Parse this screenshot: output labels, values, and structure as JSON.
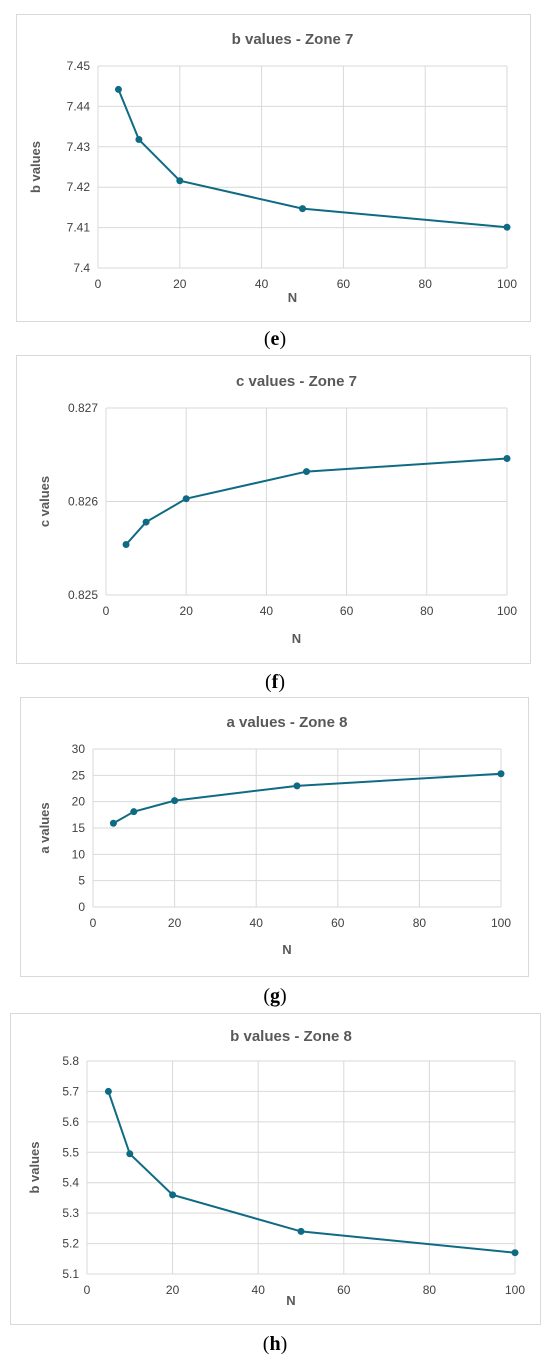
{
  "chart_data": [
    {
      "type": "line",
      "title": "b values - Zone 7",
      "xlabel": "N",
      "ylabel": "b values",
      "x": [
        5,
        10,
        20,
        50,
        100
      ],
      "values": [
        7.4442,
        7.4318,
        7.4216,
        7.4147,
        7.4101
      ],
      "xlim": [
        0,
        100
      ],
      "ylim": [
        7.4,
        7.45
      ],
      "xticks": [
        "0",
        "20",
        "40",
        "60",
        "80",
        "100"
      ],
      "yticks": [
        "7.4",
        "7.41",
        "7.42",
        "7.43",
        "7.44",
        "7.45"
      ],
      "grid": true,
      "color": "#0f6b84",
      "caption": "e"
    },
    {
      "type": "line",
      "title": "c values - Zone 7",
      "xlabel": "N",
      "ylabel": "c values",
      "x": [
        5,
        10,
        20,
        50,
        100
      ],
      "values": [
        0.82554,
        0.82578,
        0.82603,
        0.82632,
        0.82646
      ],
      "xlim": [
        0,
        100
      ],
      "ylim": [
        0.825,
        0.827
      ],
      "xticks": [
        "0",
        "20",
        "40",
        "60",
        "80",
        "100"
      ],
      "yticks": [
        "0.825",
        "0.826",
        "0.827"
      ],
      "grid": true,
      "color": "#0f6b84",
      "caption": "f"
    },
    {
      "type": "line",
      "title": "a values - Zone 8",
      "xlabel": "N",
      "ylabel": "a values",
      "x": [
        5,
        10,
        20,
        50,
        100
      ],
      "values": [
        15.9,
        18.1,
        20.2,
        23.0,
        25.3
      ],
      "xlim": [
        0,
        100
      ],
      "ylim": [
        0,
        30
      ],
      "xticks": [
        "0",
        "20",
        "40",
        "60",
        "80",
        "100"
      ],
      "yticks": [
        "0",
        "5",
        "10",
        "15",
        "20",
        "25",
        "30"
      ],
      "grid": true,
      "color": "#0f6b84",
      "caption": "g"
    },
    {
      "type": "line",
      "title": "b values - Zone 8",
      "xlabel": "N",
      "ylabel": "b values",
      "x": [
        5,
        10,
        20,
        50,
        100
      ],
      "values": [
        5.7,
        5.495,
        5.36,
        5.24,
        5.17
      ],
      "xlim": [
        0,
        100
      ],
      "ylim": [
        5.1,
        5.8
      ],
      "xticks": [
        "0",
        "20",
        "40",
        "60",
        "80",
        "100"
      ],
      "yticks": [
        "5.1",
        "5.2",
        "5.3",
        "5.4",
        "5.5",
        "5.6",
        "5.7",
        "5.8"
      ],
      "grid": true,
      "color": "#0f6b84",
      "caption": "h"
    }
  ]
}
